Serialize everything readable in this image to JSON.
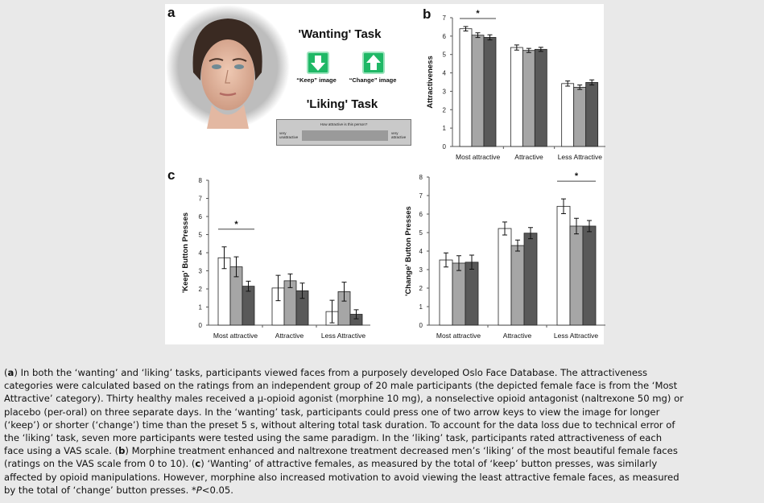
{
  "panel_a": {
    "label": "a",
    "wanting_title": "'Wanting' Task",
    "keep_label": "“Keep” image",
    "change_label": "“Change” image",
    "liking_title": "'Liking' Task",
    "vas_question": "How attractive is this person?",
    "vas_left": "very unattractive",
    "vas_right": "very attractive",
    "keep_icon": "down-arrow-icon",
    "change_icon": "up-arrow-icon"
  },
  "colors": {
    "placebo": "#ffffff",
    "naltrexone": "#a6a6a6",
    "morphine": "#595959",
    "arrow_green": "#1fb866"
  },
  "chart_data": [
    {
      "id": "b",
      "panel_label": "b",
      "type": "bar",
      "ylabel": "Attractiveness",
      "ylim": [
        0,
        7
      ],
      "yticks": [
        0,
        1,
        2,
        3,
        4,
        5,
        6,
        7
      ],
      "categories": [
        "Most attractive",
        "Attractive",
        "Less Attractive"
      ],
      "series": [
        {
          "values": [
            6.4,
            5.38,
            3.42
          ],
          "errors": [
            0.12,
            0.14,
            0.14
          ]
        },
        {
          "values": [
            6.05,
            5.22,
            3.22
          ],
          "errors": [
            0.13,
            0.11,
            0.12
          ]
        },
        {
          "values": [
            5.93,
            5.28,
            3.48
          ],
          "errors": [
            0.14,
            0.11,
            0.14
          ]
        }
      ],
      "significance": [
        {
          "category": 0,
          "label": "*"
        }
      ]
    },
    {
      "id": "c1",
      "panel_label": "c",
      "type": "bar",
      "ylabel": "'Keep' Button Presses",
      "ylim": [
        0,
        8
      ],
      "yticks": [
        0,
        1,
        2,
        3,
        4,
        5,
        6,
        7,
        8
      ],
      "categories": [
        "Most attractive",
        "Attractive",
        "Less Attractive"
      ],
      "series": [
        {
          "values": [
            3.72,
            2.05,
            0.75
          ],
          "errors": [
            0.6,
            0.7,
            0.62
          ]
        },
        {
          "values": [
            3.22,
            2.45,
            1.85
          ],
          "errors": [
            0.55,
            0.38,
            0.52
          ]
        },
        {
          "values": [
            2.15,
            1.9,
            0.6
          ],
          "errors": [
            0.28,
            0.42,
            0.25
          ]
        }
      ],
      "significance": [
        {
          "category": 0,
          "label": "*"
        }
      ]
    },
    {
      "id": "c2",
      "panel_label": "",
      "type": "bar",
      "ylabel": "'Change' Button Presses",
      "ylim": [
        0,
        8
      ],
      "yticks": [
        0,
        1,
        2,
        3,
        4,
        5,
        6,
        7,
        8
      ],
      "categories": [
        "Most attractive",
        "Attractive",
        "Less Attractive"
      ],
      "series": [
        {
          "values": [
            3.52,
            5.22,
            6.42
          ],
          "errors": [
            0.38,
            0.35,
            0.4
          ]
        },
        {
          "values": [
            3.35,
            4.3,
            5.35
          ],
          "errors": [
            0.4,
            0.3,
            0.42
          ]
        },
        {
          "values": [
            3.4,
            4.97,
            5.35
          ],
          "errors": [
            0.38,
            0.3,
            0.3
          ]
        }
      ],
      "significance": [
        {
          "category": 2,
          "label": "*"
        }
      ]
    }
  ],
  "caption": {
    "lines": [
      [
        {
          "t": "("
        },
        {
          "t": "a",
          "b": 1
        },
        {
          "t": ") In both the ‘wanting’ and ‘liking’ tasks, participants viewed faces from a purposely developed Oslo Face Database. The attractiveness"
        }
      ],
      [
        {
          "t": "categories were calculated based on the ratings from an independent group of 20 male participants (the depicted female face is from the ‘Most"
        }
      ],
      [
        {
          "t": "Attractive’ category). Thirty healthy males received a μ-opioid agonist (morphine 10 mg), a nonselective opioid antagonist (naltrexone 50 mg) or"
        }
      ],
      [
        {
          "t": "placebo (per-oral) on three separate days. In the ‘wanting’ task, participants could press one of two arrow keys to view the image for longer"
        }
      ],
      [
        {
          "t": "(‘keep’) or shorter (‘change’) time than the preset 5 s, without altering total task duration. To account for the data loss due to technical error of"
        }
      ],
      [
        {
          "t": "the ‘liking’ task, seven more participants were tested using the same paradigm. In the ‘liking’ task, participants rated attractiveness of each"
        }
      ],
      [
        {
          "t": "face using a VAS scale. ("
        },
        {
          "t": "b",
          "b": 1
        },
        {
          "t": ") Morphine treatment enhanced and naltrexone treatment decreased men’s ‘liking’ of the most beautiful female faces"
        }
      ],
      [
        {
          "t": "(ratings on the VAS scale from 0 to 10). ("
        },
        {
          "t": "c",
          "b": 1
        },
        {
          "t": ") ‘Wanting’ of attractive females, as measured by the total of ‘keep’ button presses, was similarly"
        }
      ],
      [
        {
          "t": "affected by opioid manipulations. However, morphine also increased motivation to avoid viewing the least attractive female faces, as measured"
        }
      ],
      [
        {
          "t": "by the total of ‘change’ button presses. *"
        },
        {
          "t": "P",
          "i": 1
        },
        {
          "t": "<0.05."
        }
      ]
    ]
  }
}
